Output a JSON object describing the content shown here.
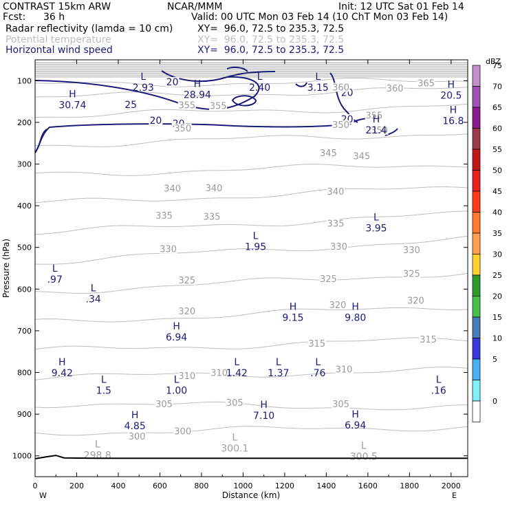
{
  "header": {
    "model": "CONTRAST 15km ARW",
    "org": "NCAR/MMM",
    "init": "Init: 12 UTC Sat 01 Feb 14",
    "fcst_label": "Fcst:",
    "fcst_value": "36 h",
    "valid": "Valid: 00 UTC Mon 03 Feb 14 (10 ChT Mon 03 Feb 14)",
    "fields": [
      {
        "name": "Radar reflectivity (lamda = 10 cm)",
        "xy": "XY=  96.0, 72.5 to 235.3, 72.5",
        "color": "#000000"
      },
      {
        "name": "Potential temperature",
        "xy": "XY=  96.0, 72.5 to 235.3, 72.5",
        "color": "#bdbdbd"
      },
      {
        "name": "Horizontal wind speed",
        "xy": "XY=  96.0, 72.5 to 235.3, 72.5",
        "color": "#1a1a78"
      }
    ]
  },
  "chart_data": {
    "type": "contour",
    "xlabel": "Distance (km)",
    "ylabel": "Pressure (hPa)",
    "x_ticks": [
      0,
      200,
      400,
      600,
      800,
      1000,
      1200,
      1400,
      1600,
      1800,
      2000
    ],
    "x_range": [
      0,
      2080
    ],
    "y_ticks": [
      100,
      200,
      300,
      400,
      500,
      600,
      700,
      800,
      900,
      1000
    ],
    "y_range": [
      50,
      1050
    ],
    "end_labels": {
      "left": "W",
      "right": "E"
    },
    "theta_contours": {
      "color": "#bdbdbd",
      "levels": [
        {
          "level": 300,
          "p_left": 945,
          "p_right": 930
        },
        {
          "level": 305,
          "p_left": 875,
          "p_right": 885
        },
        {
          "level": 310,
          "p_left": 812,
          "p_right": 795
        },
        {
          "level": 315,
          "p_left": 748,
          "p_right": 720
        },
        {
          "level": 320,
          "p_left": 680,
          "p_right": 640
        },
        {
          "level": 325,
          "p_left": 607,
          "p_right": 560
        },
        {
          "level": 330,
          "p_left": 535,
          "p_right": 480
        },
        {
          "level": 335,
          "p_left": 465,
          "p_right": 420
        },
        {
          "level": 340,
          "p_left": 395,
          "p_right": 355
        },
        {
          "level": 345,
          "p_left": 325,
          "p_right": 300
        },
        {
          "level": 350,
          "p_left": 255,
          "p_right": 225
        },
        {
          "level": 355,
          "p_left": 185,
          "p_right": 160
        },
        {
          "level": 360,
          "p_left": 140,
          "p_right": 120
        },
        {
          "level": 365,
          "p_left": 110,
          "p_right": 100
        }
      ],
      "labels": [
        {
          "text": "300",
          "x": 490,
          "p": 958
        },
        {
          "text": "300",
          "x": 710,
          "p": 945
        },
        {
          "text": "305",
          "x": 620,
          "p": 880
        },
        {
          "text": "305",
          "x": 960,
          "p": 877
        },
        {
          "text": "305",
          "x": 1470,
          "p": 880
        },
        {
          "text": "310",
          "x": 730,
          "p": 812
        },
        {
          "text": "310",
          "x": 885,
          "p": 805
        },
        {
          "text": "310",
          "x": 1485,
          "p": 797
        },
        {
          "text": "315",
          "x": 1355,
          "p": 735
        },
        {
          "text": "315",
          "x": 1890,
          "p": 725
        },
        {
          "text": "320",
          "x": 730,
          "p": 657
        },
        {
          "text": "320",
          "x": 1455,
          "p": 642
        },
        {
          "text": "320",
          "x": 1830,
          "p": 632
        },
        {
          "text": "325",
          "x": 730,
          "p": 583
        },
        {
          "text": "325",
          "x": 1410,
          "p": 580
        },
        {
          "text": "325",
          "x": 1810,
          "p": 567
        },
        {
          "text": "330",
          "x": 640,
          "p": 508
        },
        {
          "text": "330",
          "x": 1460,
          "p": 502
        },
        {
          "text": "330",
          "x": 1810,
          "p": 510
        },
        {
          "text": "335",
          "x": 620,
          "p": 428
        },
        {
          "text": "335",
          "x": 850,
          "p": 430
        },
        {
          "text": "335",
          "x": 1445,
          "p": 447
        },
        {
          "text": "340",
          "x": 660,
          "p": 363
        },
        {
          "text": "340",
          "x": 860,
          "p": 362
        },
        {
          "text": "340",
          "x": 1445,
          "p": 370
        },
        {
          "text": "345",
          "x": 1410,
          "p": 278
        },
        {
          "text": "345",
          "x": 1570,
          "p": 285
        },
        {
          "text": "350",
          "x": 710,
          "p": 218
        },
        {
          "text": "350",
          "x": 1470,
          "p": 210
        },
        {
          "text": "350",
          "x": 1655,
          "p": 223
        },
        {
          "text": "355",
          "x": 730,
          "p": 163
        },
        {
          "text": "355",
          "x": 880,
          "p": 165
        },
        {
          "text": "355",
          "x": 1630,
          "p": 188
        },
        {
          "text": "360",
          "x": 1470,
          "p": 120
        },
        {
          "text": "360",
          "x": 1730,
          "p": 123
        },
        {
          "text": "365",
          "x": 1880,
          "p": 110
        }
      ]
    },
    "wind_speed": {
      "color": "#1a1a78",
      "labels": [
        {
          "text": "20",
          "x": 660,
          "p": 108
        },
        {
          "text": "25",
          "x": 460,
          "p": 162
        },
        {
          "text": "20",
          "x": 580,
          "p": 200
        },
        {
          "text": "20",
          "x": 690,
          "p": 208
        },
        {
          "text": "20",
          "x": 1500,
          "p": 133
        },
        {
          "text": "20",
          "x": 1500,
          "p": 197
        }
      ]
    },
    "extrema": [
      {
        "type": "H",
        "value": "30.74",
        "x": 180,
        "p": 140
      },
      {
        "type": "H",
        "value": "28.94",
        "x": 780,
        "p": 115
      },
      {
        "type": "L",
        "value": "2.93",
        "x": 520,
        "p": 98
      },
      {
        "type": "L",
        "value": "2.40",
        "x": 1080,
        "p": 98
      },
      {
        "type": "L",
        "value": "3.15",
        "x": 1360,
        "p": 98
      },
      {
        "type": "H",
        "value": "20.5",
        "x": 2000,
        "p": 117
      },
      {
        "type": "H",
        "value": "16.8",
        "x": 2010,
        "p": 178
      },
      {
        "type": "H",
        "value": "21.4",
        "x": 1640,
        "p": 200
      },
      {
        "type": "L",
        "value": "3.95",
        "x": 1640,
        "p": 435
      },
      {
        "type": "L",
        "value": "1.95",
        "x": 1060,
        "p": 480
      },
      {
        "type": "L",
        "value": ".97",
        "x": 95,
        "p": 558
      },
      {
        "type": "L",
        "value": ".34",
        "x": 280,
        "p": 605
      },
      {
        "type": "H",
        "value": "9.15",
        "x": 1240,
        "p": 650
      },
      {
        "type": "H",
        "value": "9.80",
        "x": 1540,
        "p": 650
      },
      {
        "type": "H",
        "value": "6.94",
        "x": 680,
        "p": 697
      },
      {
        "type": "H",
        "value": "9.42",
        "x": 130,
        "p": 783
      },
      {
        "type": "L",
        "value": "1.42",
        "x": 970,
        "p": 783
      },
      {
        "type": "L",
        "value": "1.37",
        "x": 1170,
        "p": 783
      },
      {
        "type": "L",
        "value": ".76",
        "x": 1360,
        "p": 783
      },
      {
        "type": "L",
        "value": "1.5",
        "x": 330,
        "p": 825
      },
      {
        "type": "L",
        "value": "1.00",
        "x": 680,
        "p": 825
      },
      {
        "type": "L",
        "value": ".16",
        "x": 1940,
        "p": 825
      },
      {
        "type": "H",
        "value": "7.10",
        "x": 1100,
        "p": 885
      },
      {
        "type": "H",
        "value": "4.85",
        "x": 480,
        "p": 910
      },
      {
        "type": "H",
        "value": "6.94",
        "x": 1540,
        "p": 908
      },
      {
        "type": "L",
        "value": "298.8",
        "x": 300,
        "p": 980,
        "gray": true
      },
      {
        "type": "L",
        "value": "300.1",
        "x": 960,
        "p": 963,
        "gray": true
      },
      {
        "type": "L",
        "value": "300.5",
        "x": 1580,
        "p": 983,
        "gray": true
      }
    ],
    "terrain_p": 1005,
    "colorbar": {
      "title": "dBZ",
      "bins": [
        {
          "label": "75",
          "color": "#c090c8"
        },
        {
          "label": "70",
          "color": "#a050b0"
        },
        {
          "label": "65",
          "color": "#8a1a8a"
        },
        {
          "label": "60",
          "color": "#9a3a4a"
        },
        {
          "label": "55",
          "color": "#c01818"
        },
        {
          "label": "50",
          "color": "#e82020"
        },
        {
          "label": "45",
          "color": "#ff3a1a"
        },
        {
          "label": "40",
          "color": "#ff7a30"
        },
        {
          "label": "35",
          "color": "#ffa050"
        },
        {
          "label": "30",
          "color": "#ffd030"
        },
        {
          "label": "25",
          "color": "#2a9a2a"
        },
        {
          "label": "20",
          "color": "#46c046"
        },
        {
          "label": "15",
          "color": "#4a7ab8"
        },
        {
          "label": "10",
          "color": "#3a3ad8"
        },
        {
          "label": "5",
          "color": "#4ab0f0"
        },
        {
          "label": "0",
          "color": "#80f0f8"
        },
        {
          "label": "",
          "color": "#ffffff"
        }
      ]
    }
  }
}
